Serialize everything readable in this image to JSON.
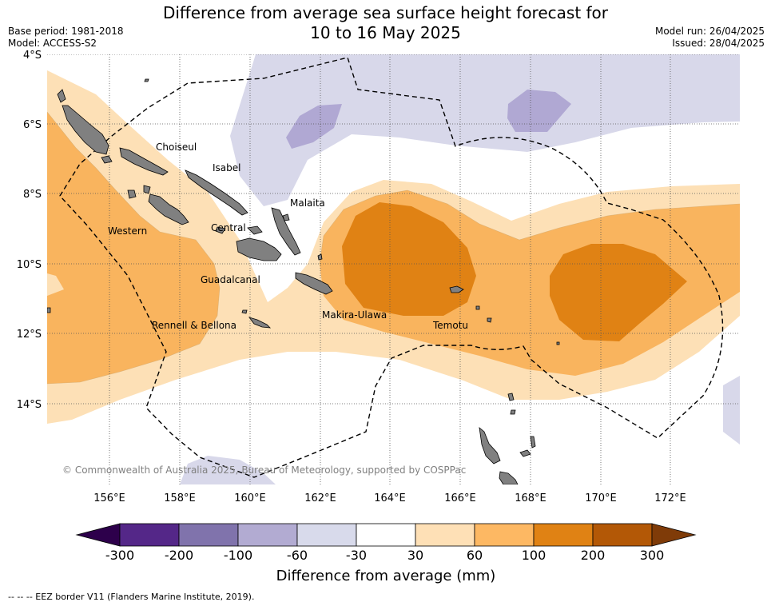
{
  "header": {
    "title_line1": "Difference from average sea surface height forecast for",
    "title_line2": "10 to 16 May 2025",
    "base_period": "Base period: 1981-2018",
    "model": "Model: ACCESS-S2",
    "model_run": "Model run: 26/04/2025",
    "issued": "Issued: 28/04/2025"
  },
  "map": {
    "lat_labels": [
      "4°S",
      "6°S",
      "8°S",
      "10°S",
      "12°S",
      "14°S"
    ],
    "lon_labels": [
      "156°E",
      "158°E",
      "160°E",
      "162°E",
      "164°E",
      "166°E",
      "168°E",
      "170°E",
      "172°E"
    ],
    "places": [
      {
        "name": "Choiseul"
      },
      {
        "name": "Isabel"
      },
      {
        "name": "Malaita"
      },
      {
        "name": "Western"
      },
      {
        "name": "Central"
      },
      {
        "name": "Guadalcanal"
      },
      {
        "name": "Makira-Ulawa"
      },
      {
        "name": "Rennell & Bellona"
      },
      {
        "name": "Temotu"
      }
    ],
    "copyright": "© Commonwealth of Australia 2025, Bureau of Meteorology, supported by COSPPac",
    "colors": {
      "land": "#808080",
      "neg_light": "#d8d8ea",
      "neg_mid": "#b0a8d3",
      "pos_light": "#fde0b6",
      "pos_mid": "#f9b45e",
      "pos_strong": "#e08214"
    }
  },
  "colorbar": {
    "tick_labels": [
      "-300",
      "-200",
      "-100",
      "-60",
      "-30",
      "30",
      "60",
      "100",
      "200",
      "300"
    ],
    "colors": [
      "#542788",
      "#8073ac",
      "#b2abd2",
      "#d8daeb",
      "#ffffff",
      "#fee0b6",
      "#fdb863",
      "#e08214",
      "#b35806"
    ],
    "under_color": "#2d004b",
    "over_color": "#7f3b08",
    "title": "Difference from average (mm)"
  },
  "footer": {
    "legend": "--  --  -- EEZ border V11 (Flanders Marine Institute, 2019)."
  }
}
